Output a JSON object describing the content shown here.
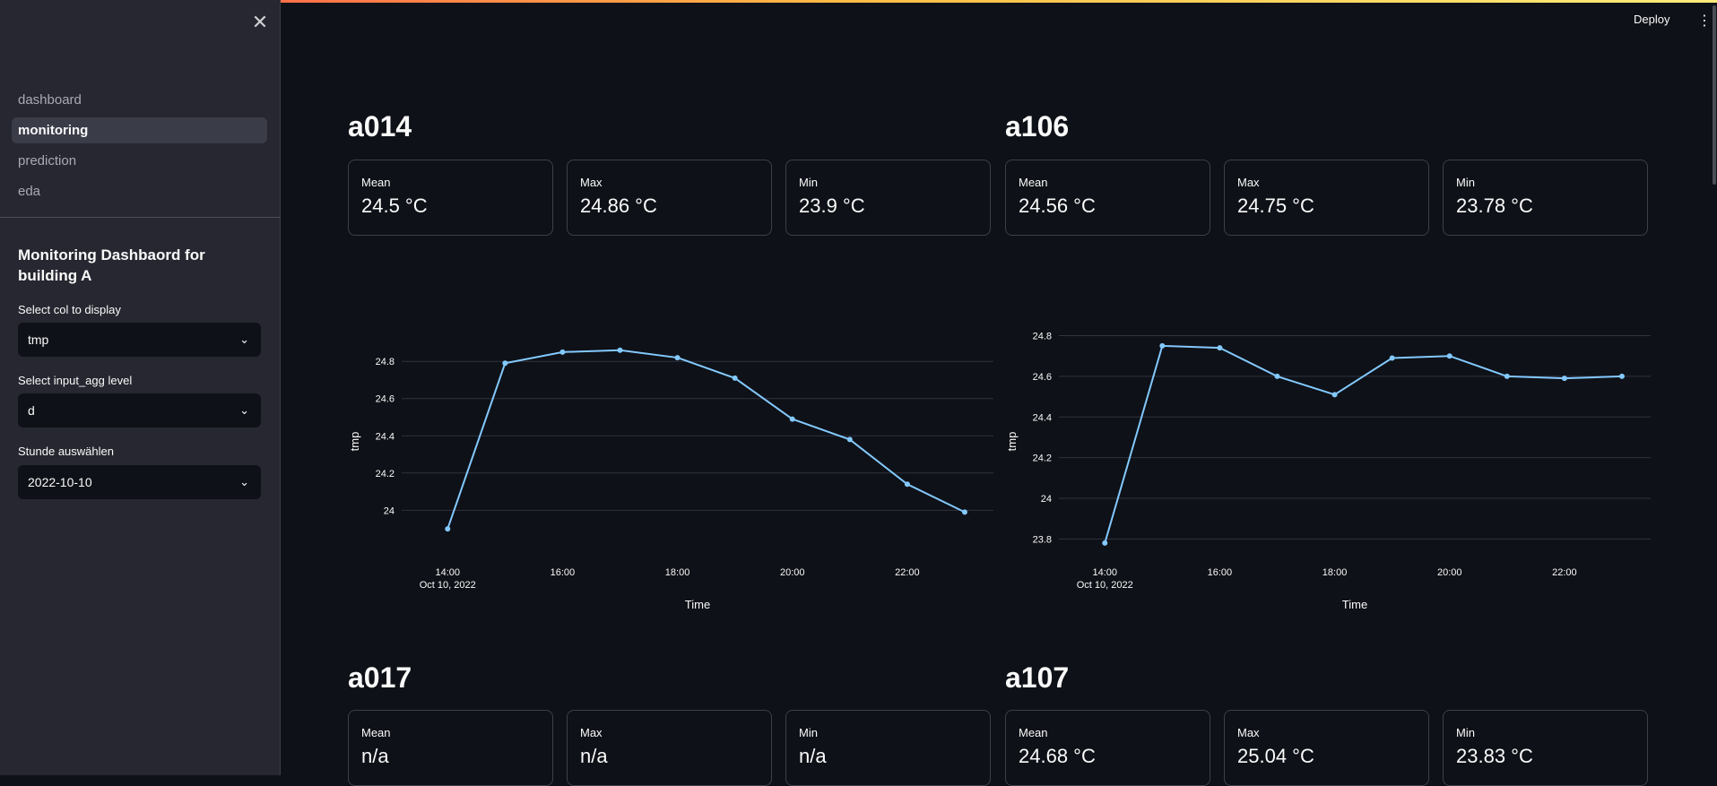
{
  "header": {
    "deploy_label": "Deploy",
    "menu_icon": "kebab-menu-icon"
  },
  "sidebar": {
    "close_icon": "close-icon",
    "nav": [
      "dashboard",
      "monitoring",
      "prediction",
      "eda"
    ],
    "active_nav": "monitoring",
    "title": "Monitoring Dashbaord for building A",
    "col_label": "Select col to display",
    "col_value": "tmp",
    "agg_label": "Select input_agg level",
    "agg_value": "d",
    "hour_label": "Stunde auswählen",
    "hour_value": "2022-10-10"
  },
  "rooms": [
    {
      "name": "a014",
      "metrics": [
        {
          "label": "Mean",
          "value": "24.5 °C"
        },
        {
          "label": "Max",
          "value": "24.86 °C"
        },
        {
          "label": "Min",
          "value": "23.9 °C"
        }
      ]
    },
    {
      "name": "a106",
      "metrics": [
        {
          "label": "Mean",
          "value": "24.56 °C"
        },
        {
          "label": "Max",
          "value": "24.75 °C"
        },
        {
          "label": "Min",
          "value": "23.78 °C"
        }
      ]
    },
    {
      "name": "a017",
      "metrics": [
        {
          "label": "Mean",
          "value": "n/a"
        },
        {
          "label": "Max",
          "value": "n/a"
        },
        {
          "label": "Min",
          "value": "n/a"
        }
      ]
    },
    {
      "name": "a107",
      "metrics": [
        {
          "label": "Mean",
          "value": "24.68 °C"
        },
        {
          "label": "Max",
          "value": "25.04 °C"
        },
        {
          "label": "Min",
          "value": "23.83 °C"
        }
      ]
    }
  ],
  "chart_data": [
    {
      "type": "line",
      "room": "a014",
      "xlabel": "Time",
      "ylabel": "tmp",
      "x_hours": [
        14,
        15,
        16,
        17,
        18,
        19,
        20,
        21,
        22,
        23
      ],
      "values": [
        23.9,
        24.79,
        24.85,
        24.86,
        24.82,
        24.71,
        24.49,
        24.38,
        24.14,
        23.99
      ],
      "xlim": [
        13.2,
        23.5
      ],
      "ylim": [
        23.78,
        24.96
      ],
      "yticks": [
        24,
        24.2,
        24.4,
        24.6,
        24.8
      ],
      "xticks": [
        14,
        16,
        18,
        20,
        22
      ],
      "xtick_labels": [
        "14:00",
        "16:00",
        "18:00",
        "20:00",
        "22:00"
      ],
      "first_tick_sub": "Oct 10, 2022",
      "line_color": "#83c9ff"
    },
    {
      "type": "line",
      "room": "a106",
      "xlabel": "Time",
      "ylabel": "tmp",
      "x_hours": [
        14,
        15,
        16,
        17,
        18,
        19,
        20,
        21,
        22,
        23
      ],
      "values": [
        23.78,
        24.75,
        24.74,
        24.6,
        24.51,
        24.69,
        24.7,
        24.6,
        24.59,
        24.6
      ],
      "xlim": [
        13.2,
        23.5
      ],
      "ylim": [
        23.74,
        24.82
      ],
      "yticks": [
        23.8,
        24,
        24.2,
        24.4,
        24.6,
        24.8
      ],
      "xticks": [
        14,
        16,
        18,
        20,
        22
      ],
      "xtick_labels": [
        "14:00",
        "16:00",
        "18:00",
        "20:00",
        "22:00"
      ],
      "first_tick_sub": "Oct 10, 2022",
      "line_color": "#83c9ff"
    }
  ]
}
